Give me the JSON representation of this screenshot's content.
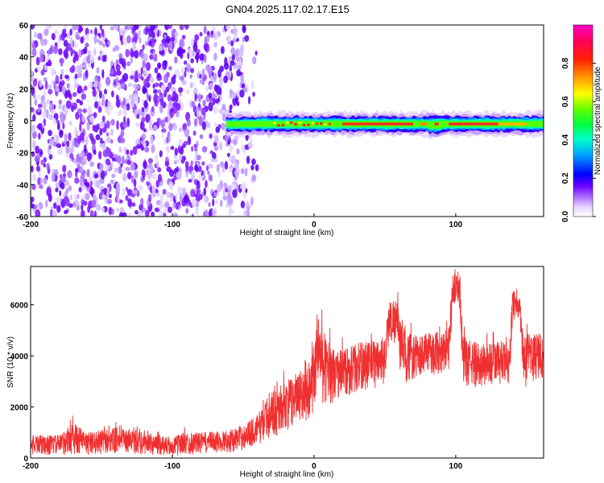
{
  "figure": {
    "title": "GN04.2025.117.02.17.E15"
  },
  "chart_data": [
    {
      "type": "heatmap",
      "xlabel": "Height of straight line (km)",
      "ylabel": "Frequency (Hz)",
      "xlim": [
        -200,
        162
      ],
      "ylim": [
        -60,
        60
      ],
      "xticks": [
        "-200",
        "-100",
        "0",
        "100"
      ],
      "yticks": [
        "-60",
        "-40",
        "-20",
        "0",
        "20",
        "40",
        "60"
      ],
      "colorbar": {
        "label": "Normalized spectral amplitude",
        "range": [
          0,
          1
        ],
        "ticks": [
          "0.0",
          "0.2",
          "0.4",
          "0.6",
          "0.8"
        ],
        "colormap": [
          "#ffffff",
          "#d9b8ff",
          "#7a00ff",
          "#0000ff",
          "#00c8ff",
          "#00ff80",
          "#40ff00",
          "#ffff00",
          "#ff8000",
          "#ff0000",
          "#ff00c0"
        ]
      },
      "regions": [
        {
          "description": "broadband noise",
          "x_range": [
            -200,
            -40
          ],
          "y_range": [
            -60,
            60
          ],
          "amplitude": 0.1
        },
        {
          "description": "narrow signal band",
          "x_range": [
            -62,
            162
          ],
          "y_center": -2,
          "y_halfwidth": 4,
          "amplitude": 0.9
        }
      ],
      "grid": false
    },
    {
      "type": "line",
      "xlabel": "Height of straight line (km)",
      "ylabel": "SNR (10 * v/v)",
      "xlim": [
        -200,
        162
      ],
      "ylim": [
        0,
        7500
      ],
      "xticks": [
        "-200",
        "-100",
        "0",
        "100"
      ],
      "yticks": [
        "0",
        "2000",
        "4000",
        "6000"
      ],
      "series_color": "#f03030",
      "envelope": {
        "x": [
          -200,
          -180,
          -170,
          -160,
          -140,
          -120,
          -105,
          -100,
          -95,
          -80,
          -60,
          -50,
          -40,
          -30,
          -20,
          -10,
          -5,
          0,
          2,
          5,
          8,
          15,
          25,
          35,
          45,
          50,
          53,
          58,
          62,
          70,
          80,
          90,
          95,
          98,
          100,
          103,
          105,
          110,
          120,
          130,
          138,
          140,
          145,
          148,
          150,
          160,
          162
        ],
        "low": [
          100,
          100,
          120,
          100,
          150,
          100,
          80,
          60,
          100,
          150,
          200,
          300,
          500,
          800,
          1000,
          1200,
          1400,
          1800,
          2300,
          2200,
          2000,
          2200,
          2400,
          2600,
          2700,
          2900,
          4500,
          4400,
          2800,
          3000,
          3200,
          3300,
          3400,
          5800,
          6000,
          5800,
          2800,
          2700,
          2700,
          2800,
          2800,
          5400,
          5400,
          2600,
          2800,
          2900,
          3000
        ],
        "high": [
          900,
          900,
          1400,
          1000,
          1200,
          1000,
          900,
          700,
          1000,
          1000,
          1100,
          1300,
          1700,
          2600,
          3000,
          3400,
          3600,
          4500,
          5800,
          5400,
          4800,
          4200,
          4400,
          4600,
          4700,
          4800,
          6200,
          6300,
          5200,
          4800,
          4900,
          5000,
          5200,
          7200,
          7500,
          7200,
          4800,
          4600,
          4500,
          4600,
          4500,
          6600,
          6500,
          4600,
          4800,
          5000,
          4400
        ]
      },
      "grid": false
    }
  ]
}
